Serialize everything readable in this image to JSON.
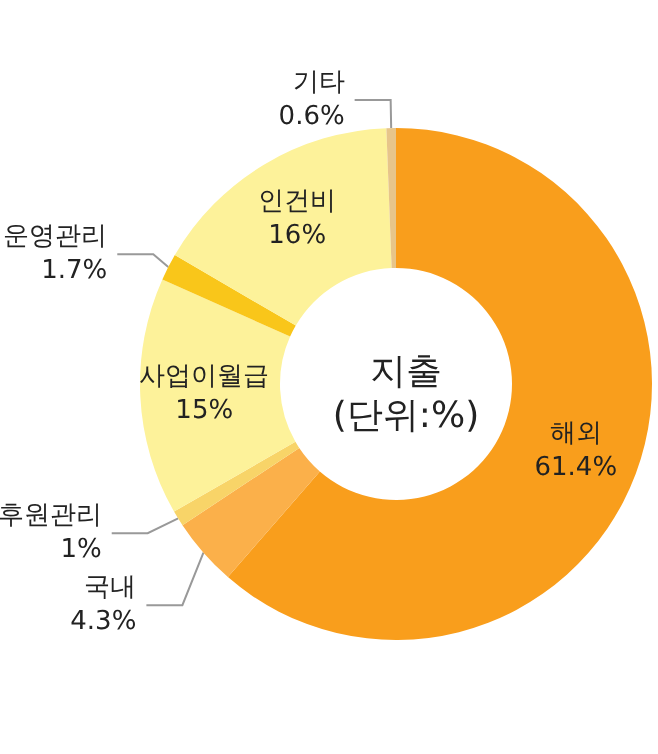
{
  "chart_data": {
    "type": "donut",
    "title": "지출\n(단위:%)",
    "categories": [
      "해외",
      "국내",
      "후원관리",
      "사업이월급",
      "운영관리",
      "인건비",
      "기타"
    ],
    "values": [
      61.4,
      4.3,
      1,
      15,
      1.7,
      16,
      0.6
    ],
    "value_labels": [
      "61.4%",
      "4.3%",
      "1%",
      "15%",
      "1.7%",
      "16%",
      "0.6%"
    ],
    "colors": [
      "#f99e1c",
      "#fbb04a",
      "#f8d468",
      "#fdf29a",
      "#f9c61a",
      "#fdf29a",
      "#e7c58a"
    ],
    "legend": false
  }
}
